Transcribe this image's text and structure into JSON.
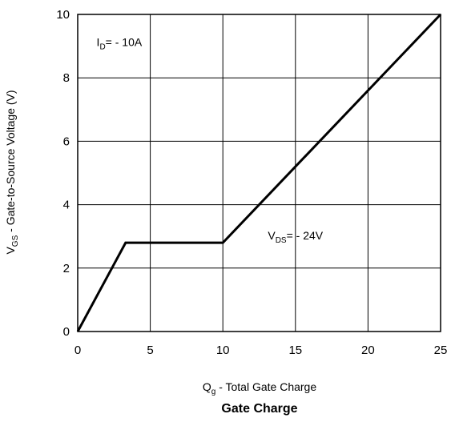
{
  "chart_data": {
    "type": "line",
    "title": "Gate Charge",
    "xlabel": {
      "main": "Q",
      "sub": "g",
      "rest": " - Total Gate Charge"
    },
    "ylabel": {
      "main": "V",
      "sub": "GS",
      "rest": " - Gate-to-Source Voltage (V)"
    },
    "xlim": [
      0,
      25
    ],
    "ylim": [
      0,
      10
    ],
    "xticks": [
      0,
      5,
      10,
      15,
      20,
      25
    ],
    "yticks": [
      0,
      2,
      4,
      6,
      8,
      10
    ],
    "grid": true,
    "series": [
      {
        "x": [
          0,
          3.3,
          10,
          25
        ],
        "y": [
          0,
          2.8,
          2.8,
          10
        ]
      }
    ],
    "annotations": [
      {
        "main": "I",
        "sub": "D",
        "rest": "= - 10A",
        "x": 1.3,
        "y": 9.0
      },
      {
        "main": "V",
        "sub": "DS",
        "rest": "= - 24V",
        "x": 13.1,
        "y": 2.9
      }
    ],
    "colors": {
      "line": "#000000",
      "grid": "#000000",
      "background": "#ffffff"
    }
  }
}
